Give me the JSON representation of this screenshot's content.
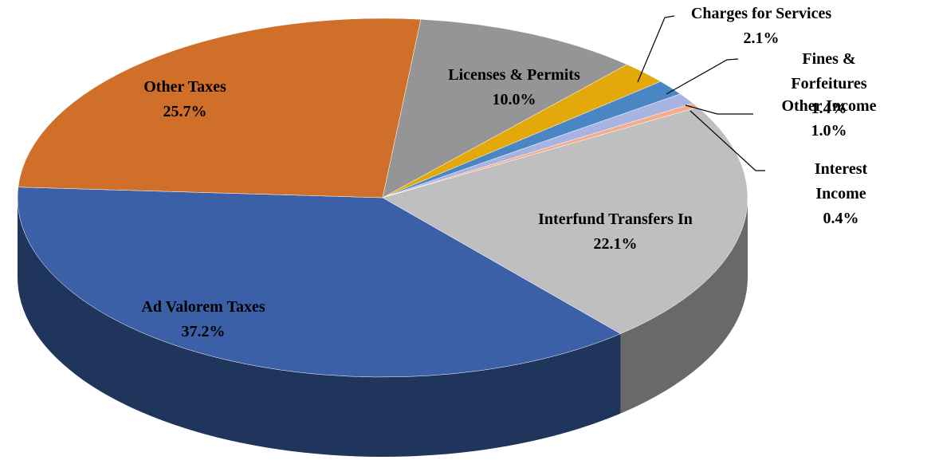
{
  "chart_data": {
    "type": "pie",
    "categories": [
      "Licenses & Permits",
      "Charges for Services",
      "Fines & Forfeitures",
      "Other Income",
      "Interest Income",
      "Interfund Transfers In",
      "Ad Valorem Taxes",
      "Other Taxes"
    ],
    "values": [
      10,
      2.1,
      1.4,
      1,
      0.4,
      22.1,
      37.2,
      25.7
    ],
    "value_labels": [
      "10.0%",
      "2.1%",
      "1.4%",
      "1.0%",
      "0.4%",
      "22.1%",
      "37.2%",
      "25.7%"
    ],
    "colors": [
      "#959595",
      "#e3a90a",
      "#4a86c4",
      "#a7b3e0",
      "#f2ad8c",
      "#bfbfbf",
      "#3b60a8",
      "#d06f2a"
    ]
  }
}
